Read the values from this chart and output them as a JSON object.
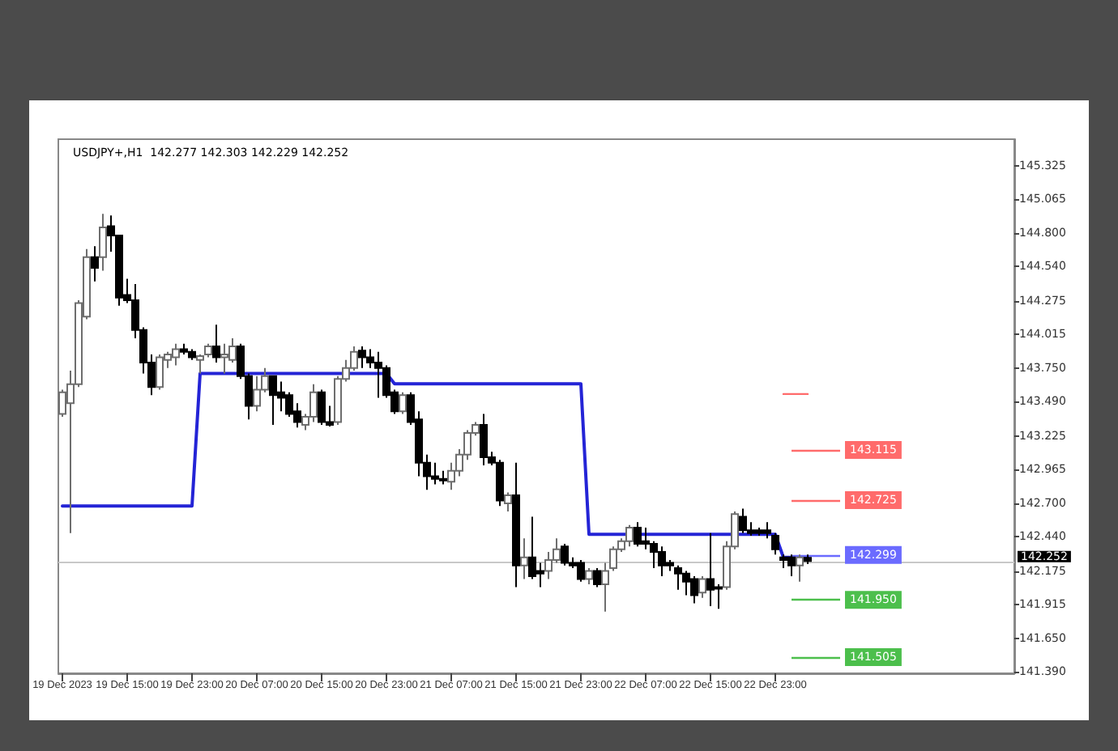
{
  "chart_data": {
    "type": "candlestick",
    "title": "USDJPY+,H1  142.277 142.303 142.229 142.252",
    "categories": [
      "19 Dec 2023",
      null,
      null,
      null,
      null,
      null,
      null,
      null,
      "19 Dec 15:00",
      null,
      null,
      null,
      null,
      null,
      null,
      null,
      "19 Dec 23:00",
      null,
      null,
      null,
      null,
      null,
      null,
      null,
      "20 Dec 07:00",
      null,
      null,
      null,
      null,
      null,
      null,
      null,
      "20 Dec 15:00",
      null,
      null,
      null,
      null,
      null,
      null,
      null,
      "20 Dec 23:00",
      null,
      null,
      null,
      null,
      null,
      null,
      null,
      "21 Dec 07:00",
      null,
      null,
      null,
      null,
      null,
      null,
      null,
      "21 Dec 15:00",
      null,
      null,
      null,
      null,
      null,
      null,
      null,
      "21 Dec 23:00",
      null,
      null,
      null,
      null,
      null,
      null,
      null,
      "22 Dec 07:00",
      null,
      null,
      null,
      null,
      null,
      null,
      null,
      "22 Dec 15:00",
      null,
      null,
      null,
      null,
      null,
      null,
      null,
      "22 Dec 23:00",
      null,
      null,
      null,
      null
    ],
    "ohlc": [
      [
        143.395,
        143.584,
        143.374,
        143.563
      ],
      [
        143.479,
        143.731,
        142.47,
        143.626
      ],
      [
        143.626,
        144.278,
        143.605,
        144.257
      ],
      [
        144.152,
        144.677,
        144.131,
        144.614
      ],
      [
        144.614,
        144.698,
        144.425,
        144.53
      ],
      [
        144.614,
        144.95,
        144.509,
        144.845
      ],
      [
        144.854,
        144.938,
        144.656,
        144.782
      ],
      [
        144.782,
        144.782,
        144.236,
        144.299
      ],
      [
        144.32,
        144.446,
        144.257,
        144.278
      ],
      [
        144.278,
        144.404,
        143.983,
        144.047
      ],
      [
        144.047,
        144.068,
        143.71,
        143.794
      ],
      [
        143.794,
        143.857,
        143.542,
        143.605
      ],
      [
        143.605,
        143.857,
        143.584,
        143.836
      ],
      [
        143.815,
        143.878,
        143.752,
        143.857
      ],
      [
        143.836,
        143.941,
        143.773,
        143.899
      ],
      [
        143.899,
        143.941,
        143.857,
        143.878
      ],
      [
        143.878,
        143.899,
        143.815,
        143.836
      ],
      [
        143.815,
        143.857,
        143.71,
        143.845
      ],
      [
        143.857,
        143.941,
        143.836,
        143.92
      ],
      [
        143.92,
        144.089,
        143.794,
        143.836
      ],
      [
        143.836,
        143.941,
        143.71,
        143.857
      ],
      [
        143.815,
        143.983,
        143.794,
        143.92
      ],
      [
        143.92,
        143.941,
        143.668,
        143.689
      ],
      [
        143.689,
        143.71,
        143.353,
        143.458
      ],
      [
        143.458,
        143.689,
        143.416,
        143.584
      ],
      [
        143.584,
        143.752,
        143.563,
        143.689
      ],
      [
        143.689,
        143.689,
        143.311,
        143.542
      ],
      [
        143.563,
        143.647,
        143.416,
        143.521
      ],
      [
        143.542,
        143.563,
        143.374,
        143.395
      ],
      [
        143.416,
        143.479,
        143.29,
        143.332
      ],
      [
        143.311,
        143.395,
        143.269,
        143.374
      ],
      [
        143.374,
        143.626,
        143.332,
        143.563
      ],
      [
        143.563,
        143.584,
        143.311,
        143.332
      ],
      [
        143.332,
        143.458,
        143.298,
        143.311
      ],
      [
        143.332,
        143.689,
        143.311,
        143.668
      ],
      [
        143.668,
        143.815,
        143.647,
        143.752
      ],
      [
        143.752,
        143.92,
        143.731,
        143.878
      ],
      [
        143.887,
        143.92,
        143.752,
        143.836
      ],
      [
        143.836,
        143.899,
        143.752,
        143.794
      ],
      [
        143.794,
        143.878,
        143.521,
        143.752
      ],
      [
        143.752,
        143.773,
        143.521,
        143.542
      ],
      [
        143.563,
        143.584,
        143.395,
        143.416
      ],
      [
        143.416,
        143.563,
        143.395,
        143.542
      ],
      [
        143.542,
        143.563,
        143.311,
        143.332
      ],
      [
        143.353,
        143.416,
        142.911,
        143.017
      ],
      [
        143.017,
        143.08,
        142.806,
        142.911
      ],
      [
        142.911,
        143.017,
        142.848,
        142.89
      ],
      [
        142.89,
        142.953,
        142.848,
        142.878
      ],
      [
        142.869,
        143.017,
        142.806,
        142.953
      ],
      [
        142.953,
        143.122,
        142.911,
        143.08
      ],
      [
        143.08,
        143.269,
        143.038,
        143.248
      ],
      [
        143.248,
        143.332,
        143.227,
        143.311
      ],
      [
        143.311,
        143.395,
        142.996,
        143.059
      ],
      [
        143.059,
        143.101,
        142.996,
        143.017
      ],
      [
        143.017,
        143.038,
        142.68,
        142.722
      ],
      [
        142.701,
        142.785,
        142.638,
        142.764
      ],
      [
        142.764,
        143.017,
        142.05,
        142.218
      ],
      [
        142.218,
        142.428,
        142.113,
        142.281
      ],
      [
        142.281,
        142.596,
        142.113,
        142.134
      ],
      [
        142.176,
        142.239,
        142.05,
        142.155
      ],
      [
        142.176,
        142.323,
        142.113,
        142.26
      ],
      [
        142.26,
        142.428,
        142.239,
        142.344
      ],
      [
        142.365,
        142.386,
        142.218,
        142.239
      ],
      [
        142.239,
        142.281,
        142.197,
        142.218
      ],
      [
        142.239,
        142.26,
        142.092,
        142.113
      ],
      [
        142.113,
        142.197,
        142.071,
        142.176
      ],
      [
        142.176,
        142.197,
        142.05,
        142.071
      ],
      [
        142.071,
        142.239,
        141.86,
        142.176
      ],
      [
        142.197,
        142.365,
        142.176,
        142.344
      ],
      [
        142.344,
        142.428,
        142.323,
        142.407
      ],
      [
        142.407,
        142.533,
        142.365,
        142.512
      ],
      [
        142.512,
        142.554,
        142.365,
        142.386
      ],
      [
        142.407,
        142.512,
        142.344,
        142.386
      ],
      [
        142.386,
        142.407,
        142.197,
        142.323
      ],
      [
        142.323,
        142.365,
        142.134,
        142.218
      ],
      [
        142.239,
        142.26,
        142.176,
        142.218
      ],
      [
        142.197,
        142.218,
        142.029,
        142.155
      ],
      [
        142.155,
        142.176,
        141.987,
        142.092
      ],
      [
        142.113,
        142.134,
        141.924,
        141.987
      ],
      [
        142.008,
        142.134,
        141.966,
        142.113
      ],
      [
        142.113,
        142.47,
        141.902,
        142.029
      ],
      [
        142.05,
        142.071,
        141.881,
        142.037
      ],
      [
        142.05,
        142.407,
        142.029,
        142.365
      ],
      [
        142.365,
        142.638,
        142.344,
        142.617
      ],
      [
        142.596,
        142.659,
        142.47,
        142.491
      ],
      [
        142.491,
        142.554,
        142.449,
        142.47
      ],
      [
        142.491,
        142.512,
        142.449,
        142.47
      ],
      [
        142.491,
        142.554,
        142.428,
        142.47
      ],
      [
        142.449,
        142.47,
        142.302,
        142.344
      ],
      [
        142.281,
        142.302,
        142.197,
        142.26
      ],
      [
        142.281,
        142.302,
        142.134,
        142.218
      ],
      [
        142.218,
        142.302,
        142.092,
        142.281
      ],
      [
        142.277,
        142.303,
        142.229,
        142.252
      ]
    ],
    "series": [
      {
        "type": "line",
        "color": "#2424d6",
        "values": [
          142.68,
          142.68,
          142.68,
          142.68,
          142.68,
          142.68,
          142.68,
          142.68,
          142.68,
          142.68,
          142.68,
          142.68,
          142.68,
          142.68,
          142.68,
          142.68,
          142.68,
          143.71,
          143.71,
          143.71,
          143.71,
          143.71,
          143.71,
          143.71,
          143.71,
          143.71,
          143.71,
          143.71,
          143.71,
          143.71,
          143.71,
          143.71,
          143.71,
          143.71,
          143.71,
          143.71,
          143.71,
          143.71,
          143.71,
          143.71,
          143.71,
          143.63,
          143.63,
          143.63,
          143.63,
          143.63,
          143.63,
          143.63,
          143.63,
          143.63,
          143.63,
          143.63,
          143.63,
          143.63,
          143.63,
          143.63,
          143.63,
          143.63,
          143.63,
          143.63,
          143.63,
          143.63,
          143.63,
          143.63,
          143.63,
          142.46,
          142.46,
          142.46,
          142.46,
          142.46,
          142.46,
          142.46,
          142.46,
          142.46,
          142.46,
          142.46,
          142.46,
          142.46,
          142.46,
          142.46,
          142.46,
          142.46,
          142.46,
          142.46,
          142.46,
          142.46,
          142.46,
          142.46,
          142.46,
          142.28,
          142.28,
          142.28,
          142.28
        ]
      },
      {
        "type": "line",
        "color": "#ff6b6b",
        "values": [
          null,
          null,
          null,
          null,
          null,
          null,
          null,
          null,
          null,
          null,
          null,
          null,
          null,
          null,
          null,
          null,
          null,
          null,
          null,
          null,
          null,
          null,
          null,
          null,
          null,
          null,
          null,
          null,
          null,
          null,
          null,
          null,
          null,
          null,
          null,
          null,
          null,
          null,
          null,
          null,
          null,
          null,
          null,
          null,
          null,
          null,
          null,
          null,
          null,
          null,
          null,
          null,
          null,
          null,
          null,
          null,
          null,
          null,
          null,
          null,
          null,
          null,
          null,
          null,
          null,
          null,
          null,
          null,
          null,
          null,
          null,
          null,
          null,
          null,
          null,
          null,
          null,
          null,
          null,
          null,
          null,
          null,
          null,
          null,
          null,
          null,
          null,
          null,
          null,
          143.55,
          143.55,
          143.55,
          143.55
        ]
      }
    ],
    "marker": "none",
    "line_style": "solid",
    "ylim": [
      141.38,
      145.53
    ],
    "yticks": [
      {
        "value": 141.39,
        "label": "141.390"
      },
      {
        "value": 141.65,
        "label": "141.650"
      },
      141.915,
      142.175,
      {
        "value": 142.44,
        "label": "142.440"
      },
      {
        "value": 142.7,
        "label": "142.700"
      },
      142.965,
      143.225,
      {
        "value": 143.49,
        "label": "143.490"
      },
      {
        "value": 143.75,
        "label": "143.750"
      },
      144.015,
      144.275,
      {
        "value": 144.54,
        "label": "144.540"
      },
      {
        "value": 144.8,
        "label": "144.800"
      },
      145.065,
      145.325
    ],
    "ref_lines": [
      {
        "axis": "y",
        "value": 142.252,
        "label": "142.252"
      },
      {
        "axis": "y",
        "value": 143.115,
        "label": "143.115",
        "color": "#ff6b6b"
      },
      {
        "axis": "y",
        "value": 142.725,
        "label": "142.725",
        "color": "#ff6b6b"
      },
      {
        "axis": "y",
        "value": 142.299,
        "label": "142.299",
        "color": "#6b6bff"
      },
      {
        "axis": "y",
        "value": 141.95,
        "label": "141.950",
        "color": "#4cbf4c"
      },
      {
        "axis": "y",
        "value": 141.505,
        "label": "141.505",
        "color": "#4cbf4c"
      }
    ],
    "grid": false
  }
}
